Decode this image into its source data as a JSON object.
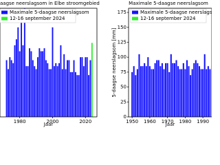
{
  "chart_data": [
    {
      "type": "bar",
      "title": "aagse neerslagsom in Elbe stroomgebied",
      "xlabel": "Jaar",
      "xlim": [
        1968,
        2027
      ],
      "xticks": [
        1980,
        2000,
        2020
      ],
      "ylim": [
        0,
        182
      ],
      "series": [
        {
          "name": "Maximale 5-daagse neerslagsom",
          "color": "#1414ff",
          "x": [
            1972,
            1973,
            1974,
            1975,
            1976,
            1977,
            1978,
            1979,
            1980,
            1981,
            1982,
            1983,
            1984,
            1985,
            1986,
            1987,
            1988,
            1989,
            1990,
            1991,
            1992,
            1993,
            1994,
            1995,
            1996,
            1997,
            1998,
            1999,
            2000,
            2001,
            2002,
            2003,
            2004,
            2005,
            2006,
            2007,
            2008,
            2009,
            2010,
            2011,
            2012,
            2013,
            2014,
            2015,
            2016,
            2017,
            2018,
            2019,
            2020,
            2021,
            2022,
            2023
          ],
          "values": [
            95,
            80,
            100,
            95,
            90,
            120,
            130,
            150,
            110,
            160,
            120,
            182,
            85,
            85,
            115,
            110,
            95,
            85,
            80,
            100,
            115,
            110,
            110,
            115,
            95,
            90,
            80,
            80,
            150,
            85,
            90,
            85,
            90,
            120,
            80,
            105,
            80,
            95,
            95,
            75,
            75,
            95,
            75,
            70,
            70,
            100,
            100,
            85,
            100,
            100,
            70,
            95
          ]
        },
        {
          "name": "12-16 september 2024",
          "color": "#33ee33",
          "x": [
            2024
          ],
          "values": [
            124
          ]
        }
      ]
    },
    {
      "type": "bar",
      "title": "Maximale 5-daagse neerslagsom",
      "xlabel": "Jaar",
      "ylabel": "5-daagse neerslagsom [mm]",
      "xlim": [
        1948,
        1995
      ],
      "xticks": [
        1950,
        1960,
        1970,
        1980,
        1990
      ],
      "ylim": [
        0,
        182
      ],
      "yticks": [
        0,
        25,
        50,
        75,
        100,
        125,
        150,
        175
      ],
      "series": [
        {
          "name": "Maximale 5-daagse neerslagsom",
          "color": "#1414ff",
          "x": [
            1950,
            1951,
            1952,
            1953,
            1954,
            1955,
            1956,
            1957,
            1958,
            1959,
            1960,
            1961,
            1962,
            1963,
            1964,
            1965,
            1966,
            1967,
            1968,
            1969,
            1970,
            1971,
            1972,
            1973,
            1974,
            1975,
            1976,
            1977,
            1978,
            1979,
            1980,
            1981,
            1982,
            1983,
            1984,
            1985,
            1986,
            1987,
            1988,
            1989,
            1990,
            1991,
            1992,
            1993,
            1994
          ],
          "values": [
            75,
            85,
            70,
            80,
            105,
            85,
            85,
            90,
            85,
            100,
            85,
            80,
            80,
            90,
            95,
            95,
            85,
            90,
            80,
            90,
            90,
            75,
            105,
            90,
            90,
            95,
            85,
            80,
            80,
            90,
            80,
            95,
            85,
            70,
            80,
            90,
            95,
            90,
            85,
            80,
            80,
            105,
            80,
            85,
            80
          ]
        },
        {
          "name": "12-16 september 2024",
          "color": "#33ee33",
          "x": [],
          "values": []
        }
      ]
    }
  ]
}
